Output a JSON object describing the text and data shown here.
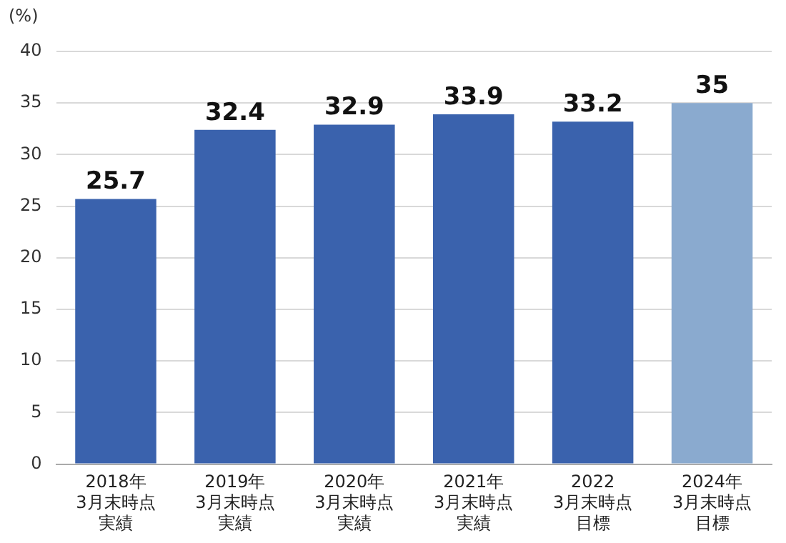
{
  "chart_data": {
    "type": "bar",
    "ylabel": "(%)",
    "categories": [
      "2018年\n3月末時点実績",
      "2019年\n3月末時点実績",
      "2020年\n3月末時点実績",
      "2021年\n3月末時点実績",
      "2022\n3月末時点目標",
      "2024年\n3月末時点目標"
    ],
    "values": [
      25.7,
      32.4,
      32.9,
      33.9,
      33.2,
      35
    ],
    "colors": [
      "#3a62ad",
      "#3a62ad",
      "#3a62ad",
      "#3a62ad",
      "#3a62ad",
      "#8aaacf"
    ],
    "ylim": [
      0,
      40
    ],
    "yticks": [
      0,
      5,
      10,
      15,
      20,
      25,
      30,
      35,
      40
    ],
    "grid": "y",
    "data_labels": true
  }
}
